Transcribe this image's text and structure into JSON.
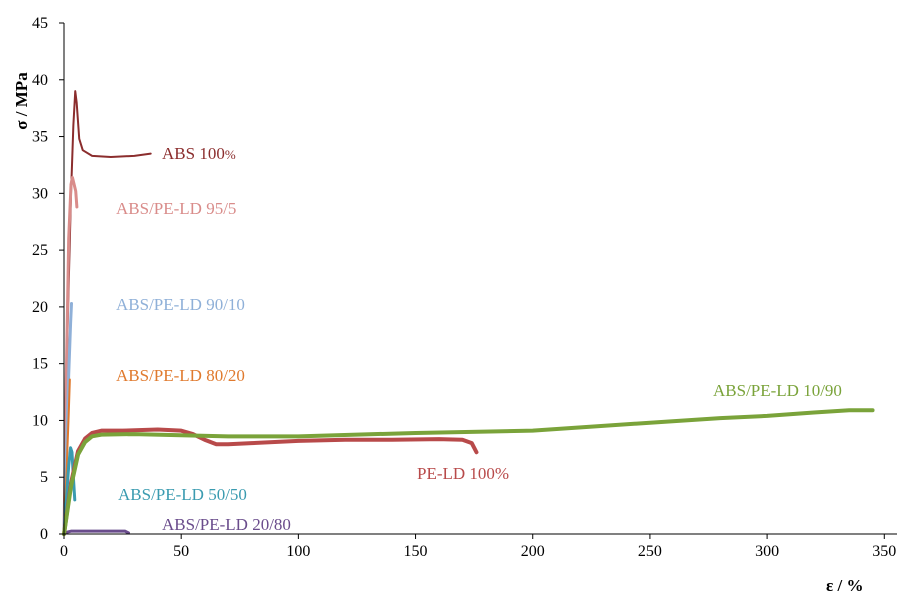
{
  "chart_data": {
    "type": "line",
    "xlabel": "ε / %",
    "ylabel": "σ / MPa",
    "xlim": [
      0,
      355
    ],
    "ylim": [
      0,
      45
    ],
    "x_ticks": [
      0,
      50,
      100,
      150,
      200,
      250,
      300,
      350
    ],
    "y_ticks": [
      0,
      5,
      10,
      15,
      20,
      25,
      30,
      35,
      40,
      45
    ],
    "grid": false,
    "series": [
      {
        "name": "ABS 100%",
        "label_main": "ABS 100",
        "label_suffix": "%",
        "color": "#8b2d2d",
        "x": [
          0,
          1.5,
          3,
          4,
          4.8,
          5.4,
          6.5,
          8,
          12,
          20,
          30,
          37
        ],
        "y": [
          0,
          18,
          30,
          36,
          39,
          38,
          34.8,
          33.8,
          33.3,
          33.2,
          33.3,
          33.5
        ]
      },
      {
        "name": "ABS/PE-LD 95/5",
        "label_main": "ABS/PE-LD 95/5",
        "color": "#d98c8a",
        "x": [
          0,
          1,
          2,
          3,
          3.6,
          4.3,
          5,
          5.5
        ],
        "y": [
          0,
          14,
          26,
          30.8,
          31.4,
          30.8,
          30.2,
          28.8
        ]
      },
      {
        "name": "ABS/PE-LD 90/10",
        "label_main": "ABS/PE-LD 90/10",
        "color": "#8fb0d8",
        "x": [
          0,
          1,
          2,
          2.8,
          3.2
        ],
        "y": [
          0,
          7,
          14,
          18.5,
          20.3
        ]
      },
      {
        "name": "ABS/PE-LD 80/20",
        "label_main": "ABS/PE-LD 80/20",
        "color": "#e07a2e",
        "x": [
          0,
          1,
          2,
          2.5
        ],
        "y": [
          0,
          5,
          10.5,
          13.6
        ]
      },
      {
        "name": "ABS/PE-LD 50/50",
        "label_main": "ABS/PE-LD 50/50",
        "color": "#3a9bb0",
        "x": [
          0,
          1,
          2,
          2.8,
          3.4,
          4,
          4.6
        ],
        "y": [
          0,
          3,
          6,
          7.6,
          7.2,
          5,
          3
        ]
      },
      {
        "name": "ABS/PE-LD 20/80",
        "label_main": "ABS/PE-LD 20/80",
        "color": "#6a4c8c",
        "x": [
          0,
          1,
          3,
          10,
          20,
          26,
          27.5
        ],
        "y": [
          0,
          0.15,
          0.25,
          0.25,
          0.25,
          0.25,
          0.1
        ]
      },
      {
        "name": "PE-LD 100%",
        "label_main": "PE-LD 100%",
        "color": "#b84a4a",
        "x": [
          0,
          3,
          6,
          9,
          12,
          16,
          25,
          40,
          50,
          55,
          60,
          65,
          70,
          80,
          100,
          120,
          140,
          160,
          170,
          174,
          176
        ],
        "y": [
          0,
          4.5,
          7.3,
          8.4,
          8.9,
          9.1,
          9.1,
          9.2,
          9.1,
          8.8,
          8.3,
          7.9,
          7.9,
          8.0,
          8.2,
          8.3,
          8.3,
          8.35,
          8.3,
          8.0,
          7.2
        ]
      },
      {
        "name": "ABS/PE-LD 10/90",
        "label_main": "ABS/PE-LD 10/90",
        "color": "#7aa33a",
        "x": [
          0,
          3,
          6,
          9,
          12,
          16,
          30,
          50,
          70,
          100,
          150,
          200,
          250,
          280,
          300,
          320,
          335,
          345
        ],
        "y": [
          0,
          4.2,
          7.0,
          8.1,
          8.6,
          8.75,
          8.8,
          8.7,
          8.6,
          8.6,
          8.9,
          9.1,
          9.8,
          10.2,
          10.4,
          10.7,
          10.9,
          10.9
        ]
      }
    ]
  }
}
